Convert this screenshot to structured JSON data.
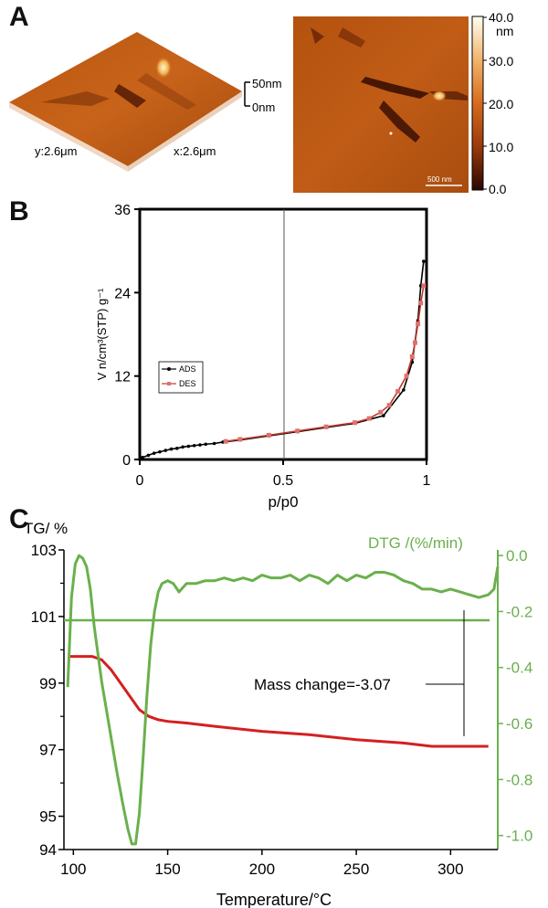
{
  "panels": {
    "a": "A",
    "b": "B",
    "c": "C"
  },
  "afm": {
    "label_3d_y": "y:2.6μm",
    "label_3d_x": "x:2.6μm",
    "z_top": "50nm",
    "z_bottom": "0nm",
    "scale_bar": "500 nm",
    "colorbar_unit": "nm",
    "colorbar_ticks": [
      "40.0",
      "30.0",
      "20.0",
      "10.0",
      "0.0"
    ],
    "colorbar_colors": [
      "#fffff2",
      "#f1b46a",
      "#d66b1d",
      "#9a3a0a",
      "#2a0600"
    ]
  },
  "chart_data": [
    {
      "id": "isotherm",
      "type": "line",
      "xlabel": "p/p0",
      "ylabel": "V n/cm³(STP) g⁻¹",
      "xlim": [
        0,
        1
      ],
      "ylim": [
        0,
        36
      ],
      "xticks": [
        "0",
        "0.5",
        "1"
      ],
      "yticks": [
        "0",
        "12",
        "24",
        "36"
      ],
      "vline_x": 0.5,
      "legend": "left-middle",
      "series": [
        {
          "name": "ADS",
          "color": "#000000",
          "x": [
            0.01,
            0.03,
            0.05,
            0.07,
            0.09,
            0.11,
            0.13,
            0.15,
            0.17,
            0.19,
            0.21,
            0.23,
            0.26,
            0.29,
            0.35,
            0.45,
            0.55,
            0.65,
            0.75,
            0.85,
            0.92,
            0.95,
            0.97,
            0.98,
            0.99
          ],
          "y": [
            0.3,
            0.6,
            0.9,
            1.1,
            1.3,
            1.5,
            1.6,
            1.8,
            1.9,
            2.0,
            2.1,
            2.2,
            2.3,
            2.5,
            2.8,
            3.4,
            4.0,
            4.6,
            5.2,
            6.3,
            10.0,
            14.0,
            20.0,
            25.0,
            28.5
          ]
        },
        {
          "name": "DES",
          "color": "#c0392b",
          "x": [
            0.3,
            0.35,
            0.45,
            0.55,
            0.65,
            0.75,
            0.8,
            0.84,
            0.87,
            0.9,
            0.93,
            0.95,
            0.96,
            0.97,
            0.98,
            0.99
          ],
          "y": [
            2.6,
            2.9,
            3.5,
            4.1,
            4.7,
            5.3,
            5.9,
            6.8,
            7.8,
            9.8,
            12.0,
            14.8,
            16.8,
            19.5,
            22.5,
            25.0
          ]
        }
      ]
    },
    {
      "id": "tga",
      "type": "line",
      "xlabel": "Temperature/°C",
      "ylabel_left": "TG/ %",
      "ylabel_right": "DTG /(%/min)",
      "xlim": [
        95,
        325
      ],
      "ylim_left": [
        94,
        103
      ],
      "ylim_right": [
        -1.05,
        0.02
      ],
      "xticks": [
        "100",
        "150",
        "200",
        "250",
        "300"
      ],
      "yticks_left": [
        "103",
        "101",
        "99",
        "97",
        "95",
        "94"
      ],
      "yticks_right": [
        "0.0",
        "-0.2",
        "-0.4",
        "-0.6",
        "-0.8",
        "-1.0"
      ],
      "hline_dtg": -0.35,
      "annotation": "Mass change=-3.07",
      "series": [
        {
          "name": "TG",
          "color": "#d32020",
          "x": [
            98,
            105,
            110,
            115,
            120,
            125,
            130,
            135,
            140,
            145,
            150,
            160,
            175,
            200,
            225,
            250,
            275,
            290,
            300,
            310,
            320
          ],
          "y": [
            99.8,
            99.8,
            99.8,
            99.7,
            99.4,
            99.0,
            98.6,
            98.2,
            98.0,
            97.9,
            97.85,
            97.8,
            97.7,
            97.55,
            97.45,
            97.3,
            97.2,
            97.1,
            97.1,
            97.1,
            97.1
          ]
        },
        {
          "name": "DTG",
          "color": "#6ab04c",
          "x": [
            97,
            99,
            101,
            103,
            105,
            107,
            109,
            111,
            113,
            115,
            117,
            120,
            123,
            126,
            129,
            131,
            133,
            135,
            137,
            139,
            141,
            143,
            145,
            147,
            150,
            153,
            156,
            160,
            165,
            170,
            175,
            180,
            185,
            190,
            195,
            200,
            205,
            210,
            215,
            220,
            225,
            230,
            235,
            240,
            245,
            250,
            255,
            260,
            265,
            270,
            275,
            280,
            285,
            290,
            295,
            300,
            305,
            310,
            315,
            320,
            323,
            325
          ],
          "y": [
            -0.47,
            -0.15,
            -0.03,
            0.0,
            -0.01,
            -0.04,
            -0.12,
            -0.25,
            -0.35,
            -0.45,
            -0.53,
            -0.65,
            -0.77,
            -0.88,
            -0.98,
            -1.03,
            -1.03,
            -0.92,
            -0.72,
            -0.5,
            -0.32,
            -0.2,
            -0.13,
            -0.1,
            -0.09,
            -0.1,
            -0.13,
            -0.1,
            -0.1,
            -0.09,
            -0.09,
            -0.08,
            -0.09,
            -0.08,
            -0.09,
            -0.07,
            -0.08,
            -0.08,
            -0.07,
            -0.09,
            -0.07,
            -0.08,
            -0.1,
            -0.07,
            -0.09,
            -0.07,
            -0.08,
            -0.06,
            -0.06,
            -0.07,
            -0.09,
            -0.1,
            -0.12,
            -0.12,
            -0.13,
            -0.12,
            -0.13,
            -0.14,
            -0.15,
            -0.14,
            -0.12,
            -0.04
          ]
        }
      ]
    }
  ]
}
